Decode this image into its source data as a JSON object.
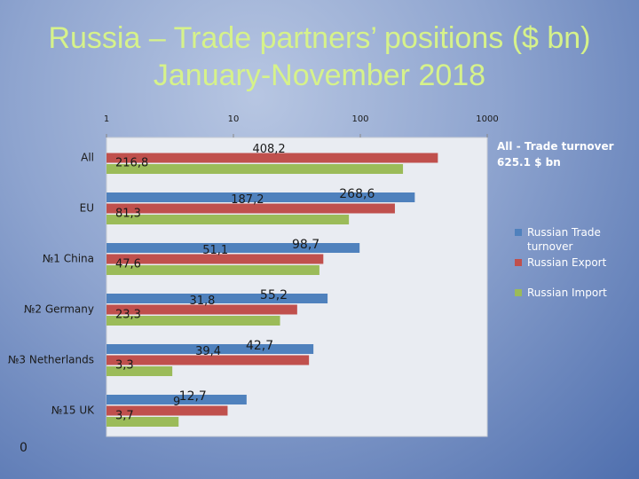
{
  "chart_data": {
    "type": "bar",
    "orientation": "horizontal",
    "title": "Russia – Trade partners’ positions ($ bn) January-November 2018",
    "annotation": "All - Trade turnover 625.1  $ bn",
    "footnote": "0",
    "categories": [
      "All",
      "EU",
      "№1 China",
      "№2 Germany",
      "№3 Netherlands",
      "№15 UK"
    ],
    "series": [
      {
        "name": "Russian Trade turnover",
        "color": "#4f81bd",
        "values": [
          null,
          268.6,
          98.7,
          55.2,
          42.7,
          12.7
        ],
        "value_labels": [
          null,
          "268,6",
          "98,7",
          "55,2",
          "42,7",
          "12,7"
        ]
      },
      {
        "name": "Russian Export",
        "color": "#c0504d",
        "values": [
          408.2,
          187.2,
          51.1,
          31.8,
          39.4,
          9
        ],
        "value_labels": [
          "408,2",
          "187,2",
          "51,1",
          "31,8",
          "39,4",
          "9"
        ]
      },
      {
        "name": "Russian Import",
        "color": "#9bbb59",
        "values": [
          216.8,
          81.3,
          47.6,
          23.3,
          3.3,
          3.7
        ],
        "value_labels": [
          "216,8",
          "81,3",
          "47,6",
          "23,3",
          "3,3",
          "3,7"
        ]
      }
    ],
    "xscale": "log",
    "xlim": [
      1,
      1000
    ],
    "xticks": [
      1,
      10,
      100,
      1000
    ],
    "legend": "right"
  }
}
